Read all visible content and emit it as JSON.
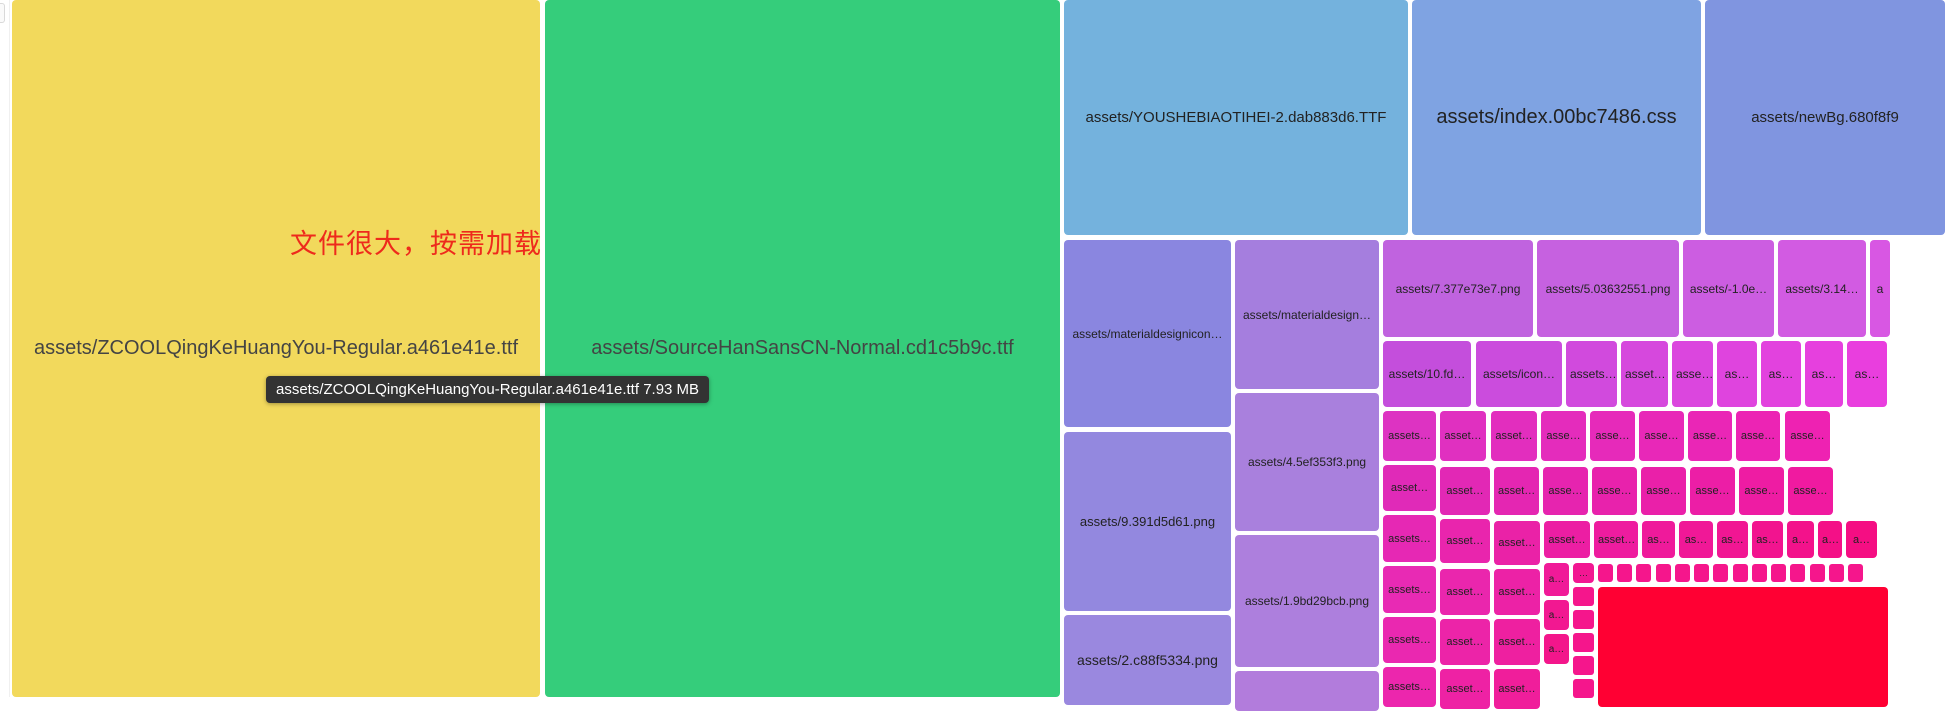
{
  "annotation": "文件很大，按需加载",
  "tooltip": {
    "name": "assets/ZCOOLQingKeHuangYou-Regular.a461e41e.ttf",
    "size": "7.93 MB"
  },
  "tiles": [
    {
      "label": "assets/ZCOOLQingKeHuangYou-Regular.a461e41e.ttf",
      "color": "#f2d95c"
    },
    {
      "label": "assets/SourceHanSansCN-Normal.cd1c5b9c.ttf",
      "color": "#35cd7b"
    },
    {
      "label": "assets/YOUSHEBIAOTIHEI-2.dab883d6.TTF",
      "color": "#74b2dd"
    },
    {
      "label": "assets/index.00bc7486.css",
      "color": "#7fa3e2"
    },
    {
      "label": "assets/newBg.680f8f9",
      "color": "#8095e0"
    },
    {
      "label": "assets/materialdesignicon…",
      "color": "#8a86e0"
    },
    {
      "label": "assets/9.391d5d61.png",
      "color": "#9388df"
    },
    {
      "label": "assets/2.c88f5334.png",
      "color": "#9a88df"
    },
    {
      "label": "assets/materialdesign…",
      "color": "#a57ede"
    },
    {
      "label": "assets/4.5ef353f3.png",
      "color": "#a980dd"
    },
    {
      "label": "assets/1.9bd29bcb.png",
      "color": "#ad7fdd"
    },
    {
      "label": "",
      "color": "#b27cdc"
    },
    {
      "label": "assets/7.377e73e7.png",
      "color": "#c063df"
    },
    {
      "label": "assets/5.03632551.png",
      "color": "#c661e0"
    },
    {
      "label": "assets/-1.0e…",
      "color": "#cc5de1"
    },
    {
      "label": "assets/3.14…",
      "color": "#d25be2"
    },
    {
      "label": "a",
      "color": "#d857e3"
    },
    {
      "label": "assets/10.fd…",
      "color": "#c44edc"
    },
    {
      "label": "assets/icon…",
      "color": "#cb4cdd"
    },
    {
      "label": "assets…",
      "color": "#d14add"
    },
    {
      "label": "asset…",
      "color": "#d648dd"
    },
    {
      "label": "asse…",
      "color": "#db46de"
    },
    {
      "label": "as…",
      "color": "#df44de"
    },
    {
      "label": "as…",
      "color": "#e242de"
    },
    {
      "label": "as…",
      "color": "#e640de"
    },
    {
      "label": "as…",
      "color": "#e93ede"
    },
    {
      "label": "assets…",
      "color": "#dd33c2"
    },
    {
      "label": "asset…",
      "color": "#e030c0"
    },
    {
      "label": "asset…",
      "color": "#e22ebe"
    },
    {
      "label": "asse…",
      "color": "#e42cbc"
    },
    {
      "label": "asse…",
      "color": "#e62aba"
    },
    {
      "label": "asse…",
      "color": "#e828b8"
    },
    {
      "label": "asse…",
      "color": "#ea26b6"
    },
    {
      "label": "asse…",
      "color": "#ec24b4"
    },
    {
      "label": "asse…",
      "color": "#ee22b2"
    },
    {
      "label": "asset…",
      "color": "#e02ab8"
    },
    {
      "label": "asset…",
      "color": "#e228b5"
    },
    {
      "label": "asset…",
      "color": "#e426b2"
    },
    {
      "label": "asse…",
      "color": "#e624af"
    },
    {
      "label": "asse…",
      "color": "#e822ac"
    },
    {
      "label": "asse…",
      "color": "#ea20a9"
    },
    {
      "label": "asse…",
      "color": "#ec1ea6"
    },
    {
      "label": "asse…",
      "color": "#ee1ca3"
    },
    {
      "label": "asse…",
      "color": "#f01aa0"
    },
    {
      "label": "assets…",
      "color": "#e628b4"
    },
    {
      "label": "asset…",
      "color": "#e925ad"
    },
    {
      "label": "asset…",
      "color": "#ea22a7"
    },
    {
      "label": "asset…",
      "color": "#ec1ea3"
    },
    {
      "label": "asset…",
      "color": "#ee1c9f"
    },
    {
      "label": "as…",
      "color": "#ef1a9b"
    },
    {
      "label": "as…",
      "color": "#f01897"
    },
    {
      "label": "as…",
      "color": "#f11693"
    },
    {
      "label": "as…",
      "color": "#f2148f"
    },
    {
      "label": "a…",
      "color": "#f3128b"
    },
    {
      "label": "a…",
      "color": "#f41087"
    },
    {
      "label": "a…",
      "color": "#f50e83"
    },
    {
      "label": "assets…",
      "color": "#e82ab4"
    },
    {
      "label": "asset…",
      "color": "#ea26ad"
    },
    {
      "label": "asset…",
      "color": "#ec22a6"
    },
    {
      "label": "a…",
      "color": "#f01a98"
    },
    {
      "label": "…",
      "color": "#f21792"
    },
    {
      "label": "assets…",
      "color": "#ea28b0"
    },
    {
      "label": "asset…",
      "color": "#ec24a8"
    },
    {
      "label": "asset…",
      "color": "#ee20a0"
    },
    {
      "label": "a…",
      "color": "#f21891"
    },
    {
      "label": "assets…",
      "color": "#ec26ad"
    },
    {
      "label": "asset…",
      "color": "#ee22a4"
    },
    {
      "label": "asset…",
      "color": "#f01e9b"
    },
    {
      "label": "a…",
      "color": "#f3168b"
    },
    {
      "label": "",
      "color": "#ff0033"
    }
  ],
  "small_squares_color": "#f5168c"
}
